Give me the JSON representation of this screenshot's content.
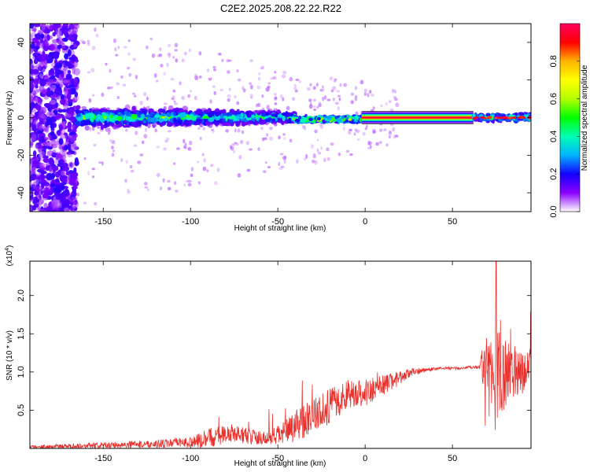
{
  "figure_title": "C2E2.2025.208.22.22.R22",
  "colors": {
    "snr_line": "#e8302c",
    "signal_core": "#e8304c",
    "frame": "#000000"
  },
  "chart_data": [
    {
      "type": "heatmap",
      "title": "C2E2.2025.208.22.22.R22",
      "xlabel": "Height of straight line (km)",
      "ylabel": "Frequency (Hz)",
      "xlim": [
        -192,
        95
      ],
      "ylim": [
        -50,
        50
      ],
      "xticks": [
        -150,
        -100,
        -50,
        0,
        50
      ],
      "yticks": [
        -40,
        -20,
        0,
        20,
        40
      ],
      "x_tick_labels": [
        "-150",
        "-100",
        "-50",
        "0",
        "50"
      ],
      "y_tick_labels": [
        "-40",
        "-20",
        "0",
        "20",
        "40"
      ],
      "colorbar": {
        "label": "Normalized spectral amplitude",
        "range": [
          0,
          1
        ],
        "ticks": [
          0.0,
          0.2,
          0.4,
          0.6,
          0.8
        ],
        "tick_labels": [
          "0.0",
          "0.2",
          "0.4",
          "0.6",
          "0.8"
        ],
        "colormap": [
          "#ffffff",
          "#8b00ff",
          "#1400ff",
          "#00b4ff",
          "#00ffb4",
          "#00ff00",
          "#b4ff00",
          "#ffff00",
          "#ffb400",
          "#ff0000",
          "#ff0060"
        ]
      },
      "signal": {
        "centre_frequency_hz": 0,
        "noisy_segment_x": [
          -192,
          -165
        ],
        "scatter_segment_x": [
          -165,
          -40
        ],
        "tight_segment_x": [
          -40,
          -2
        ],
        "clean_line_x": [
          -2,
          62
        ],
        "late_scatter_x": [
          62,
          95
        ],
        "clean_line_half_width_hz": 1.2,
        "clean_line_amplitude": 1.0
      }
    },
    {
      "type": "line",
      "title": "",
      "xlabel": "Height of straight line (km)",
      "ylabel": "SNR (10 * v/v)",
      "y_multiplier_label": "(x10",
      "y_multiplier_exponent": "4",
      "y_multiplier_close": ")",
      "xlim": [
        -192,
        95
      ],
      "ylim": [
        0,
        2.45
      ],
      "xticks": [
        -150,
        -100,
        -50,
        0,
        50
      ],
      "yticks": [
        0.5,
        1.0,
        1.5,
        2.0
      ],
      "x_tick_labels": [
        "-150",
        "-100",
        "-50",
        "0",
        "50"
      ],
      "y_tick_labels": [
        "0.5",
        "1.0",
        "1.5",
        "2.0"
      ],
      "series": [
        {
          "envelope_x": [
            -192,
            -150,
            -120,
            -100,
            -95,
            -85,
            -75,
            -65,
            -55,
            -45,
            -40,
            -35,
            -30,
            -25,
            -20,
            -15,
            -10,
            -5,
            0,
            5,
            10,
            15,
            20,
            25,
            30,
            35,
            40,
            45,
            50,
            55,
            60,
            65,
            68,
            72,
            75,
            78,
            82,
            86,
            90,
            95
          ],
          "envelope_y": [
            0.02,
            0.04,
            0.06,
            0.08,
            0.1,
            0.17,
            0.2,
            0.15,
            0.12,
            0.22,
            0.28,
            0.38,
            0.44,
            0.5,
            0.55,
            0.62,
            0.7,
            0.75,
            0.72,
            0.78,
            0.82,
            0.88,
            0.93,
            0.98,
            1.01,
            1.03,
            1.04,
            1.05,
            1.05,
            1.05,
            1.06,
            1.06,
            1.06,
            1.0,
            1.05,
            0.95,
            1.0,
            1.05,
            1.0,
            1.05
          ],
          "noise_amplitude": [
            0.02,
            0.04,
            0.05,
            0.07,
            0.1,
            0.14,
            0.12,
            0.1,
            0.1,
            0.16,
            0.2,
            0.24,
            0.22,
            0.22,
            0.24,
            0.2,
            0.2,
            0.18,
            0.2,
            0.16,
            0.14,
            0.12,
            0.1,
            0.06,
            0.04,
            0.03,
            0.02,
            0.02,
            0.02,
            0.02,
            0.02,
            0.02,
            0.35,
            0.5,
            0.8,
            0.5,
            0.4,
            0.35,
            0.3,
            0.2
          ],
          "peak_value": 2.45,
          "peak_x": 75
        }
      ]
    }
  ]
}
